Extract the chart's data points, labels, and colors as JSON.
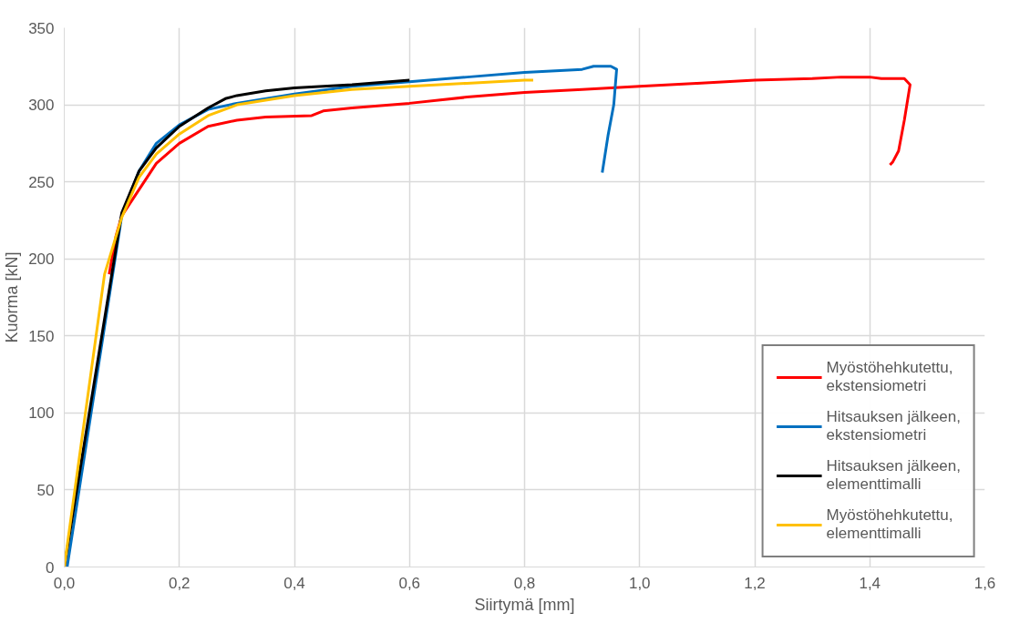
{
  "chart_data": {
    "type": "line",
    "xlabel": "Siirtymä [mm]",
    "ylabel": "Kuorma [kN]",
    "xlim": [
      0,
      1.6
    ],
    "ylim": [
      0,
      350
    ],
    "xticks": [
      {
        "value": 0,
        "label": "0,0"
      },
      {
        "value": 0.2,
        "label": "0,2"
      },
      {
        "value": 0.4,
        "label": "0,4"
      },
      {
        "value": 0.6,
        "label": "0,6"
      },
      {
        "value": 0.8,
        "label": "0,8"
      },
      {
        "value": 1.0,
        "label": "1,0"
      },
      {
        "value": 1.2,
        "label": "1,2"
      },
      {
        "value": 1.4,
        "label": "1,4"
      },
      {
        "value": 1.6,
        "label": "1,6"
      }
    ],
    "yticks": [
      0,
      50,
      100,
      150,
      200,
      250,
      300,
      350
    ],
    "grid": true,
    "legend": "bottom right",
    "marker": "none",
    "line_style": "solid",
    "series": [
      {
        "name": "Myöstöhehkutettu, ekstensiometri",
        "color": "#ff0000",
        "x": [
          0.078,
          0.09,
          0.1,
          0.13,
          0.16,
          0.2,
          0.25,
          0.3,
          0.35,
          0.43,
          0.45,
          0.5,
          0.6,
          0.7,
          0.8,
          0.9,
          1.0,
          1.1,
          1.2,
          1.3,
          1.35,
          1.4,
          1.42,
          1.46,
          1.47,
          1.46,
          1.45,
          1.44,
          1.435
        ],
        "values": [
          190,
          215,
          228,
          245,
          262,
          275,
          286,
          290,
          292,
          293,
          296,
          298,
          301,
          305,
          308,
          310,
          312,
          314,
          316,
          317,
          318,
          318,
          317,
          317,
          313,
          290,
          270,
          263,
          261
        ]
      },
      {
        "name": "Hitsauksen jälkeen, ekstensiometri",
        "color": "#0070c0",
        "x": [
          0.005,
          0.1,
          0.13,
          0.16,
          0.2,
          0.25,
          0.3,
          0.4,
          0.5,
          0.6,
          0.7,
          0.8,
          0.9,
          0.92,
          0.95,
          0.96,
          0.955,
          0.945,
          0.935
        ],
        "values": [
          0,
          228,
          257,
          275,
          287,
          297,
          301,
          307,
          312,
          315,
          318,
          321,
          323,
          325,
          325,
          323,
          300,
          280,
          256
        ]
      },
      {
        "name": "Hitsauksen jälkeen, elementtimalli",
        "color": "#000000",
        "x": [
          0,
          0.1,
          0.13,
          0.16,
          0.2,
          0.25,
          0.28,
          0.3,
          0.35,
          0.4,
          0.5,
          0.6
        ],
        "values": [
          0,
          230,
          257,
          272,
          286,
          298,
          304,
          306,
          309,
          311,
          313,
          316
        ]
      },
      {
        "name": "Myöstöhehkutettu, elementtimalli",
        "color": "#ffc000",
        "x": [
          0,
          0.07,
          0.1,
          0.13,
          0.16,
          0.2,
          0.25,
          0.3,
          0.4,
          0.5,
          0.6,
          0.7,
          0.8,
          0.815
        ],
        "values": [
          0,
          190,
          227,
          253,
          268,
          281,
          293,
          300,
          306,
          310,
          312,
          314,
          316,
          316
        ]
      }
    ]
  }
}
